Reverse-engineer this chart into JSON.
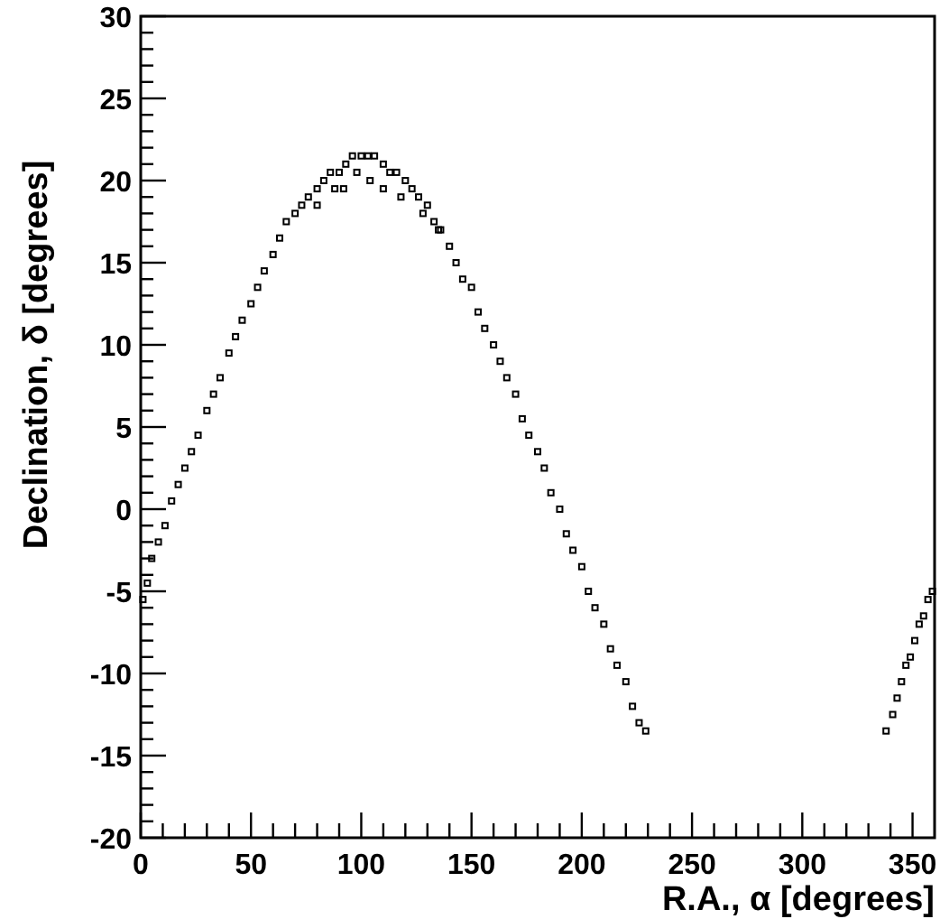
{
  "chart_data": {
    "type": "scatter",
    "xlabel": "R.A., α [degrees]",
    "ylabel": "Declination, δ [degrees]",
    "xlim": [
      0,
      360
    ],
    "ylim": [
      -20,
      30
    ],
    "xticks": [
      0,
      {
        "value": 10,
        "label": null
      },
      {
        "value": 20,
        "label": null
      },
      {
        "value": 30,
        "label": null
      },
      {
        "value": 40,
        "label": null
      },
      50,
      {
        "value": 60,
        "label": null
      },
      {
        "value": 70,
        "label": null
      },
      {
        "value": 80,
        "label": null
      },
      {
        "value": 90,
        "label": null
      },
      100,
      {
        "value": 110,
        "label": null
      },
      {
        "value": 120,
        "label": null
      },
      {
        "value": 130,
        "label": null
      },
      {
        "value": 140,
        "label": null
      },
      150,
      {
        "value": 160,
        "label": null
      },
      {
        "value": 170,
        "label": null
      },
      {
        "value": 180,
        "label": null
      },
      {
        "value": 190,
        "label": null
      },
      200,
      {
        "value": 210,
        "label": null
      },
      {
        "value": 220,
        "label": null
      },
      {
        "value": 230,
        "label": null
      },
      {
        "value": 240,
        "label": null
      },
      250,
      {
        "value": 260,
        "label": null
      },
      {
        "value": 270,
        "label": null
      },
      {
        "value": 280,
        "label": null
      },
      {
        "value": 290,
        "label": null
      },
      300,
      {
        "value": 310,
        "label": null
      },
      {
        "value": 320,
        "label": null
      },
      {
        "value": 330,
        "label": null
      },
      {
        "value": 340,
        "label": null
      },
      350
    ],
    "yticks": [
      -20,
      {
        "value": -19,
        "label": null
      },
      {
        "value": -18,
        "label": null
      },
      {
        "value": -17,
        "label": null
      },
      {
        "value": -16,
        "label": null
      },
      -15,
      {
        "value": -14,
        "label": null
      },
      {
        "value": -13,
        "label": null
      },
      {
        "value": -12,
        "label": null
      },
      {
        "value": -11,
        "label": null
      },
      -10,
      {
        "value": -9,
        "label": null
      },
      {
        "value": -8,
        "label": null
      },
      {
        "value": -7,
        "label": null
      },
      {
        "value": -6,
        "label": null
      },
      -5,
      {
        "value": -4,
        "label": null
      },
      {
        "value": -3,
        "label": null
      },
      {
        "value": -2,
        "label": null
      },
      {
        "value": -1,
        "label": null
      },
      0,
      {
        "value": 1,
        "label": null
      },
      {
        "value": 2,
        "label": null
      },
      {
        "value": 3,
        "label": null
      },
      {
        "value": 4,
        "label": null
      },
      5,
      {
        "value": 6,
        "label": null
      },
      {
        "value": 7,
        "label": null
      },
      {
        "value": 8,
        "label": null
      },
      {
        "value": 9,
        "label": null
      },
      10,
      {
        "value": 11,
        "label": null
      },
      {
        "value": 12,
        "label": null
      },
      {
        "value": 13,
        "label": null
      },
      {
        "value": 14,
        "label": null
      },
      15,
      {
        "value": 16,
        "label": null
      },
      {
        "value": 17,
        "label": null
      },
      {
        "value": 18,
        "label": null
      },
      {
        "value": 19,
        "label": null
      },
      20,
      {
        "value": 21,
        "label": null
      },
      {
        "value": 22,
        "label": null
      },
      {
        "value": 23,
        "label": null
      },
      {
        "value": 24,
        "label": null
      },
      25,
      {
        "value": 26,
        "label": null
      },
      {
        "value": 27,
        "label": null
      },
      {
        "value": 28,
        "label": null
      },
      {
        "value": 29,
        "label": null
      },
      30
    ],
    "marker": "square",
    "grid": false,
    "series": [
      {
        "color": "#000000",
        "x": [
          1,
          3,
          5,
          8,
          11,
          14,
          17,
          20,
          23,
          26,
          30,
          33,
          36,
          40,
          43,
          46,
          50,
          53,
          56,
          60,
          63,
          66,
          70,
          73,
          76,
          80,
          83,
          86,
          90,
          93,
          96,
          100,
          103,
          106,
          110,
          113,
          116,
          120,
          123,
          126,
          130,
          133,
          136,
          140,
          143,
          146,
          150,
          153,
          156,
          160,
          163,
          166,
          170,
          173,
          176,
          180,
          183,
          186,
          190,
          193,
          196,
          200,
          203,
          206,
          210,
          213,
          216,
          220,
          223,
          226,
          229,
          338,
          341,
          343,
          345,
          347,
          349,
          351,
          353,
          355,
          357,
          359,
          92,
          98,
          104,
          110,
          118,
          128,
          88,
          80,
          135
        ],
        "values": [
          -5.5,
          -4.5,
          -3,
          -2,
          -1,
          0.5,
          1.5,
          2.5,
          3.5,
          4.5,
          6,
          7,
          8,
          9.5,
          10.5,
          11.5,
          12.5,
          13.5,
          14.5,
          15.5,
          16.5,
          17.5,
          18,
          18.5,
          19,
          19.5,
          20,
          20.5,
          20.5,
          21,
          21.5,
          21.5,
          21.5,
          21.5,
          21,
          20.5,
          20.5,
          20,
          19.5,
          19,
          18.5,
          17.5,
          17,
          16,
          15,
          14,
          13.5,
          12,
          11,
          10,
          9,
          8,
          7,
          5.5,
          4.5,
          3.5,
          2.5,
          1,
          0,
          -1.5,
          -2.5,
          -3.5,
          -5,
          -6,
          -7,
          -8.5,
          -9.5,
          -10.5,
          -12,
          -13,
          -13.5,
          -13.5,
          -12.5,
          -11.5,
          -10.5,
          -9.5,
          -9,
          -8,
          -7,
          -6.5,
          -5.5,
          -5,
          19.5,
          20.5,
          20,
          19.5,
          19,
          18,
          19.5,
          18.5,
          17
        ]
      }
    ]
  }
}
